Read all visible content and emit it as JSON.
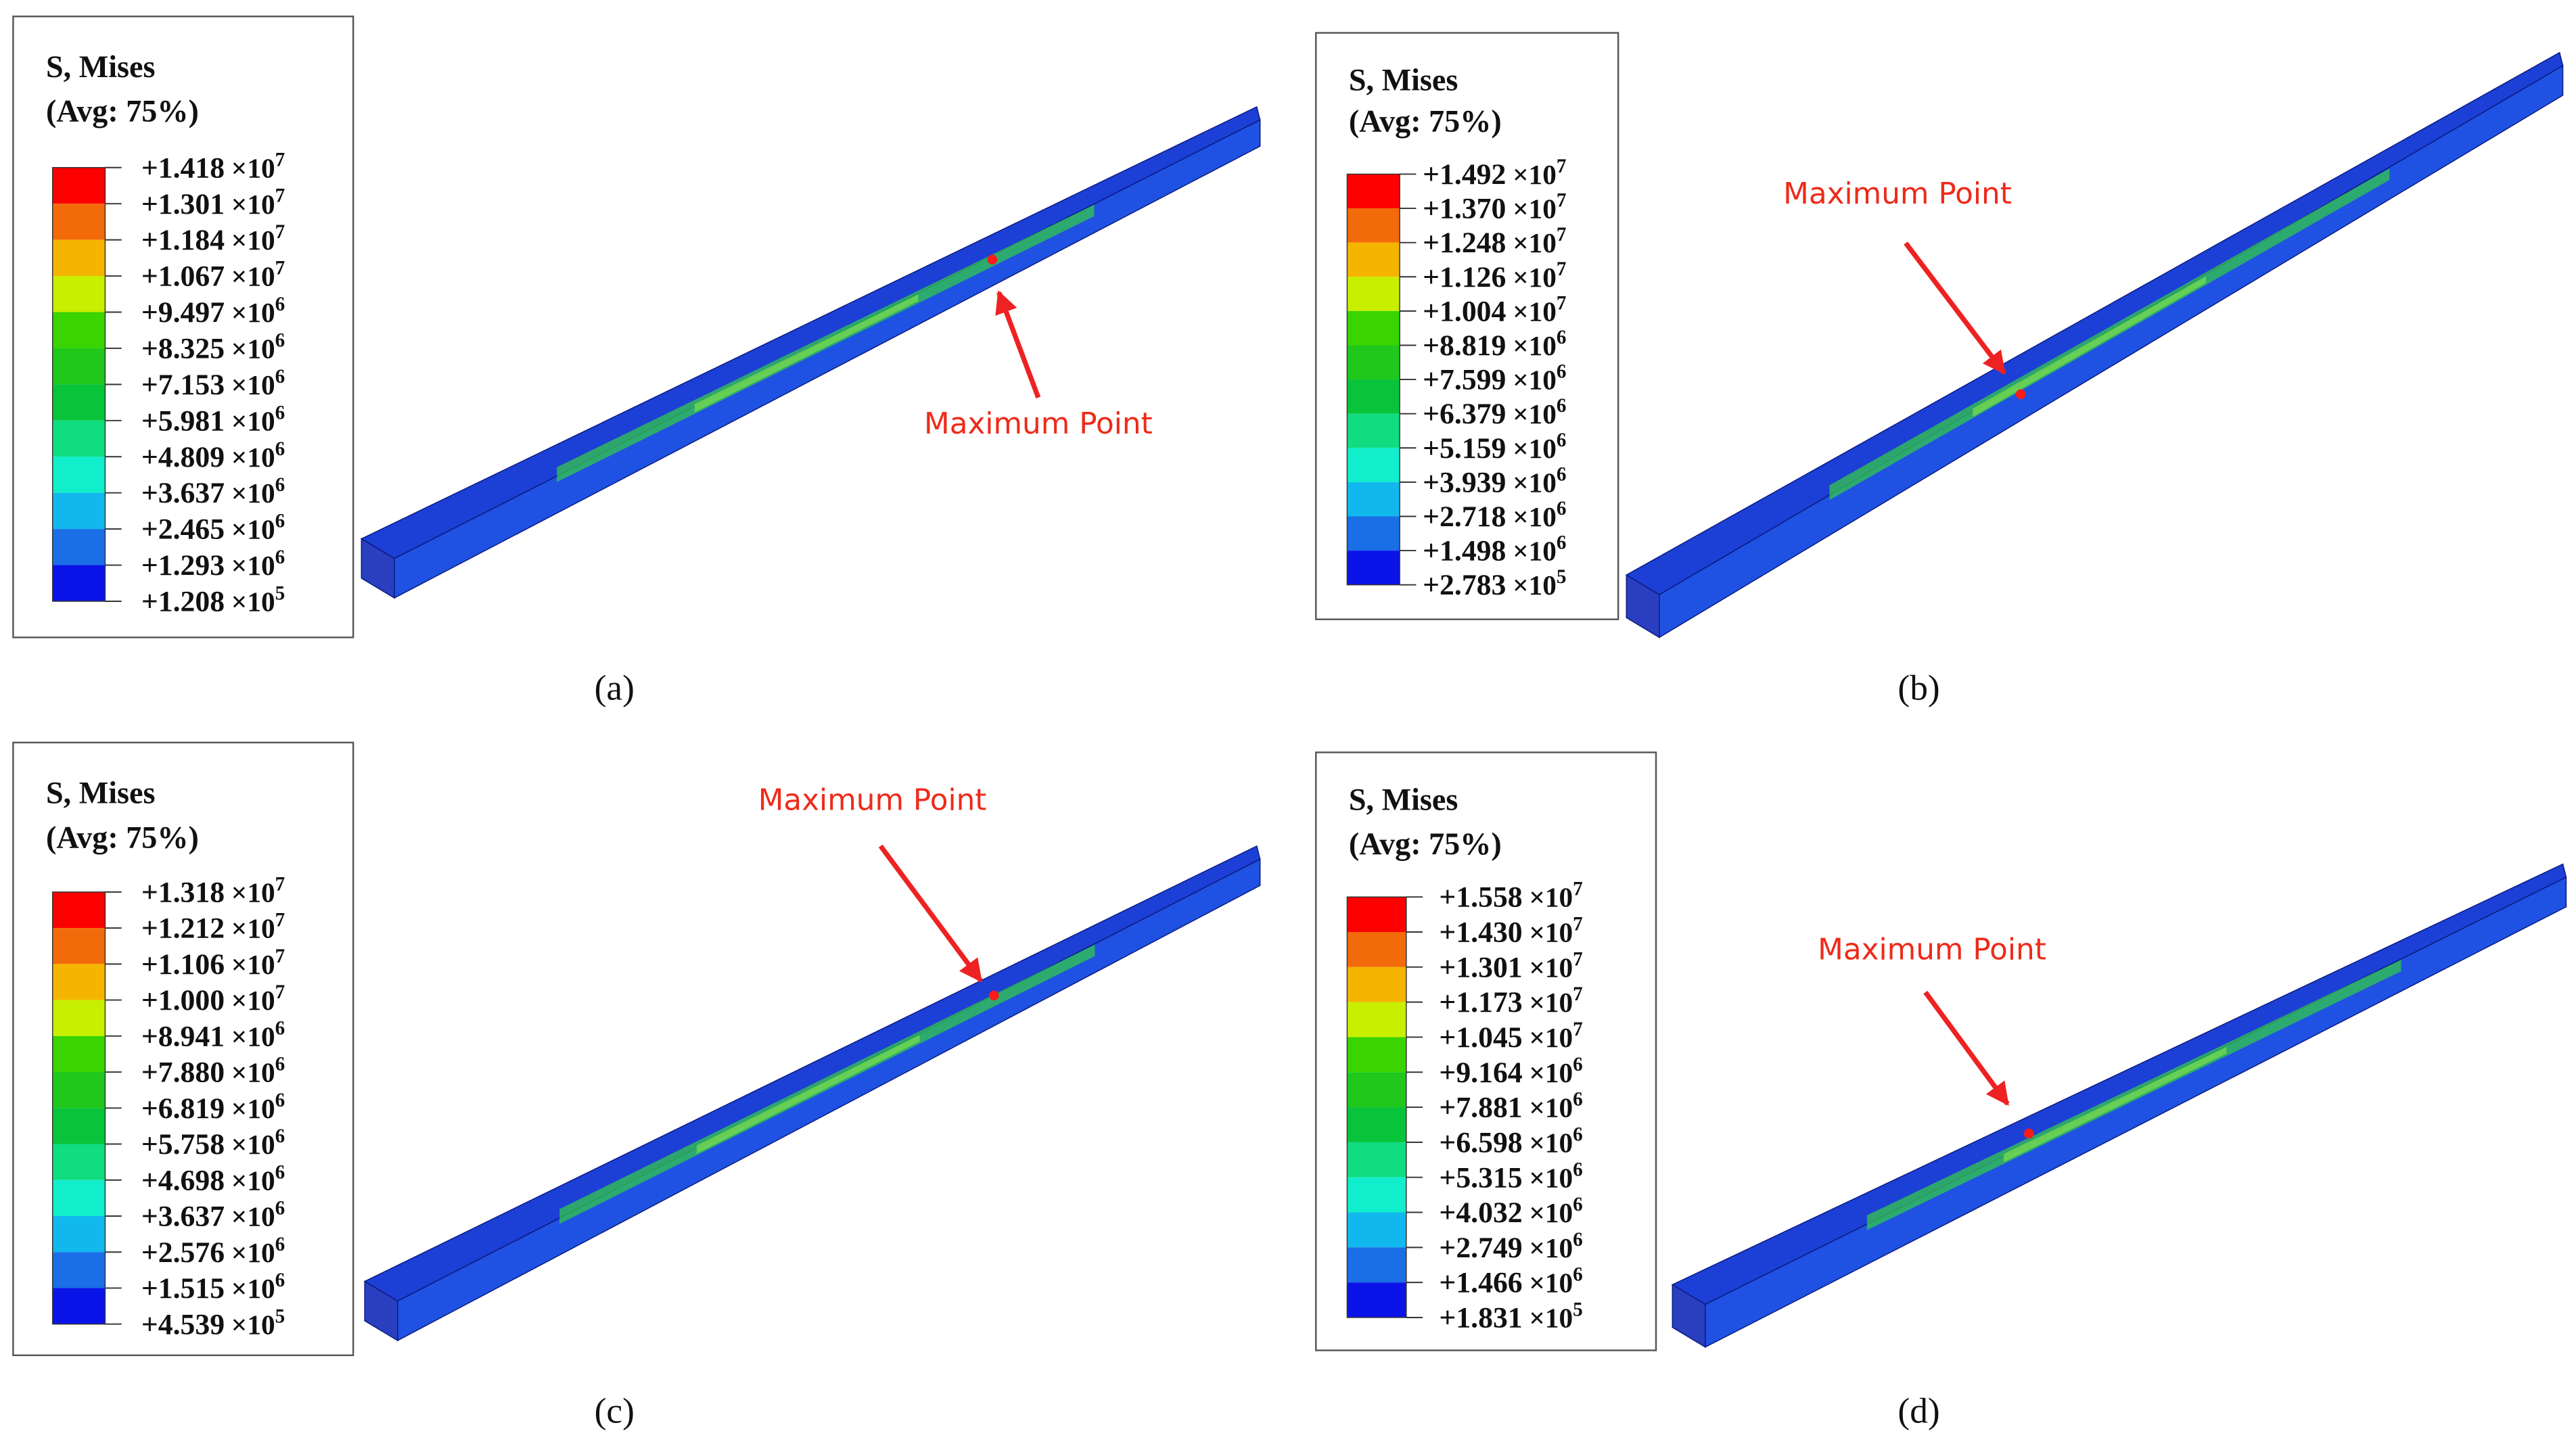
{
  "legend_colors": [
    "#ff0000",
    "#f26a0a",
    "#f5b400",
    "#c8ee00",
    "#3ad400",
    "#1fc81a",
    "#08c43a",
    "#10dc80",
    "#10eecc",
    "#10b8ee",
    "#1a6ee6",
    "#0a14e8"
  ],
  "panels": [
    {
      "legend_title": "S, Mises",
      "legend_subtitle": "(Avg: 75%)",
      "annotation": "Maximum Point",
      "caption": "(a)",
      "legend": [
        [
          "+1.418",
          "×10",
          "7"
        ],
        [
          "+1.301",
          "×10",
          "7"
        ],
        [
          "+1.184",
          "×10",
          "7"
        ],
        [
          "+1.067",
          "×10",
          "7"
        ],
        [
          "+9.497",
          "×10",
          "6"
        ],
        [
          "+8.325",
          "×10",
          "6"
        ],
        [
          "+7.153",
          "×10",
          "6"
        ],
        [
          "+5.981",
          "×10",
          "6"
        ],
        [
          "+4.809",
          "×10",
          "6"
        ],
        [
          "+3.637",
          "×10",
          "6"
        ],
        [
          "+2.465",
          "×10",
          "6"
        ],
        [
          "+1.293",
          "×10",
          "6"
        ],
        [
          "+1.208",
          "×10",
          "5"
        ]
      ]
    },
    {
      "legend_title": "S, Mises",
      "legend_subtitle": "(Avg: 75%)",
      "annotation": "Maximum Point",
      "caption": "(b)",
      "legend": [
        [
          "+1.492",
          "×10",
          "7"
        ],
        [
          "+1.370",
          "×10",
          "7"
        ],
        [
          "+1.248",
          "×10",
          "7"
        ],
        [
          "+1.126",
          "×10",
          "7"
        ],
        [
          "+1.004",
          "×10",
          "7"
        ],
        [
          "+8.819",
          "×10",
          "6"
        ],
        [
          "+7.599",
          "×10",
          "6"
        ],
        [
          "+6.379",
          "×10",
          "6"
        ],
        [
          "+5.159",
          "×10",
          "6"
        ],
        [
          "+3.939",
          "×10",
          "6"
        ],
        [
          "+2.718",
          "×10",
          "6"
        ],
        [
          "+1.498",
          "×10",
          "6"
        ],
        [
          "+2.783",
          "×10",
          "5"
        ]
      ]
    },
    {
      "legend_title": "S, Mises",
      "legend_subtitle": "(Avg: 75%)",
      "annotation": "Maximum Point",
      "caption": "(c)",
      "legend": [
        [
          "+1.318",
          "×10",
          "7"
        ],
        [
          "+1.212",
          "×10",
          "7"
        ],
        [
          "+1.106",
          "×10",
          "7"
        ],
        [
          "+1.000",
          "×10",
          "7"
        ],
        [
          "+8.941",
          "×10",
          "6"
        ],
        [
          "+7.880",
          "×10",
          "6"
        ],
        [
          "+6.819",
          "×10",
          "6"
        ],
        [
          "+5.758",
          "×10",
          "6"
        ],
        [
          "+4.698",
          "×10",
          "6"
        ],
        [
          "+3.637",
          "×10",
          "6"
        ],
        [
          "+2.576",
          "×10",
          "6"
        ],
        [
          "+1.515",
          "×10",
          "6"
        ],
        [
          "+4.539",
          "×10",
          "5"
        ]
      ]
    },
    {
      "legend_title": "S, Mises",
      "legend_subtitle": "(Avg: 75%)",
      "annotation": "Maximum Point",
      "caption": "(d)",
      "legend": [
        [
          "+1.558",
          "×10",
          "7"
        ],
        [
          "+1.430",
          "×10",
          "7"
        ],
        [
          "+1.301",
          "×10",
          "7"
        ],
        [
          "+1.173",
          "×10",
          "7"
        ],
        [
          "+1.045",
          "×10",
          "7"
        ],
        [
          "+9.164",
          "×10",
          "6"
        ],
        [
          "+7.881",
          "×10",
          "6"
        ],
        [
          "+6.598",
          "×10",
          "6"
        ],
        [
          "+5.315",
          "×10",
          "6"
        ],
        [
          "+4.032",
          "×10",
          "6"
        ],
        [
          "+2.749",
          "×10",
          "6"
        ],
        [
          "+1.466",
          "×10",
          "6"
        ],
        [
          "+1.831",
          "×10",
          "5"
        ]
      ]
    }
  ]
}
